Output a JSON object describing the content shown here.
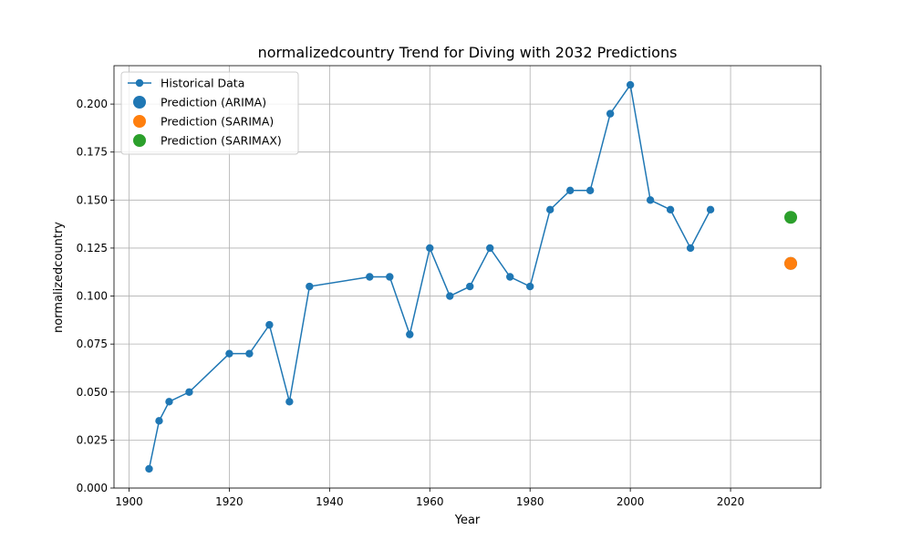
{
  "chart_data": {
    "type": "line",
    "title": "normalizedcountry Trend for Diving with 2032 Predictions",
    "xlabel": "Year",
    "ylabel": "normalizedcountry",
    "xlim": [
      1897,
      2038
    ],
    "ylim": [
      0.0,
      0.22
    ],
    "x_ticks": [
      1900,
      1920,
      1940,
      1960,
      1980,
      2000,
      2020
    ],
    "y_ticks": [
      0.0,
      0.025,
      0.05,
      0.075,
      0.1,
      0.125,
      0.15,
      0.175,
      0.2
    ],
    "y_tick_labels": [
      "0.000",
      "0.025",
      "0.050",
      "0.075",
      "0.100",
      "0.125",
      "0.150",
      "0.175",
      "0.200"
    ],
    "grid": true,
    "legend_position": "top-left",
    "series": [
      {
        "name": "Historical Data",
        "kind": "line-marker",
        "color": "#1f77b4",
        "x": [
          1904,
          1906,
          1908,
          1912,
          1920,
          1924,
          1928,
          1932,
          1936,
          1948,
          1952,
          1956,
          1960,
          1964,
          1968,
          1972,
          1976,
          1980,
          1984,
          1988,
          1992,
          1996,
          2000,
          2004,
          2008,
          2012,
          2016
        ],
        "y": [
          0.01,
          0.035,
          0.045,
          0.05,
          0.07,
          0.07,
          0.085,
          0.045,
          0.105,
          0.11,
          0.11,
          0.08,
          0.125,
          0.1,
          0.105,
          0.125,
          0.11,
          0.105,
          0.145,
          0.155,
          0.155,
          0.195,
          0.21,
          0.15,
          0.145,
          0.125,
          0.145
        ]
      },
      {
        "name": "Prediction (ARIMA)",
        "kind": "point",
        "color": "#1f77b4",
        "x": [
          2032
        ],
        "y": [
          0.117
        ]
      },
      {
        "name": "Prediction (SARIMA)",
        "kind": "point",
        "color": "#ff7f0e",
        "x": [
          2032
        ],
        "y": [
          0.117
        ]
      },
      {
        "name": "Prediction (SARIMAX)",
        "kind": "point",
        "color": "#2ca02c",
        "x": [
          2032
        ],
        "y": [
          0.141
        ]
      }
    ]
  }
}
